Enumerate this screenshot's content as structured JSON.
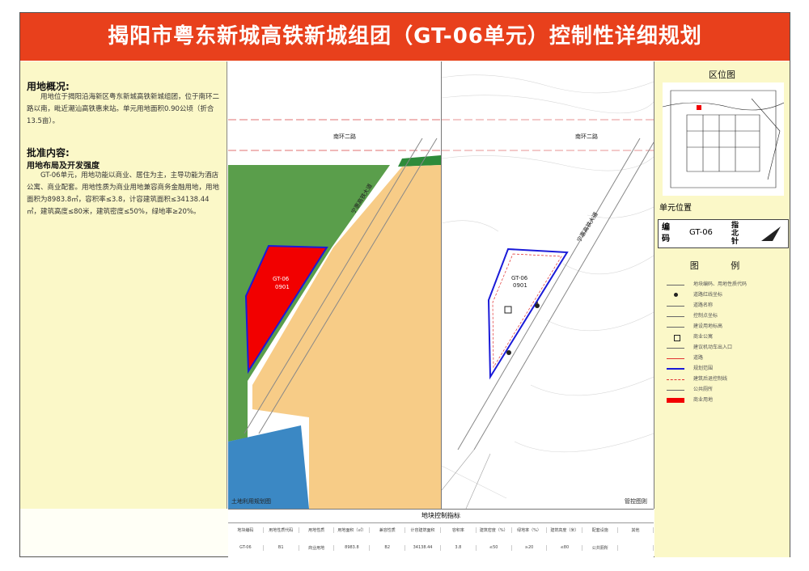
{
  "title": "揭阳市粤东新城高铁新城组团（GT-06单元）控制性详细规划",
  "overview": {
    "heading": "用地概况:",
    "text": "用地位于揭阳沿海新区粤东新城高铁新城组团，位于南环二路以南，毗近潮汕高铁惠来站。单元用地面积0.90公顷（折合13.5亩）。"
  },
  "approval": {
    "heading": "批准内容:",
    "subheading": "用地布局及开发强度",
    "text": "GT-06单元，用地功能以商业、居住为主，主导功能为酒店公寓、商业配套。用地性质为商业用地兼容商务金融用地，用地面积为8983.8㎡，容积率≤3.8，计容建筑面积≤34138.44㎡，建筑高度≤80米，建筑密度≤50%，绿地率≥20%。"
  },
  "left_map": {
    "road_top": "南环二路",
    "road_diag": "宁惠高铁大道",
    "plot_code": "GT-06",
    "plot_sub": "0901",
    "caption": "土地利用规划图"
  },
  "right_map": {
    "road_top": "南环二路",
    "road_diag": "宁惠高铁大道",
    "plot_code": "GT-06",
    "plot_sub": "0901",
    "caption": "管控图则"
  },
  "location": {
    "heading": "区位图",
    "unit_label": "单元位置"
  },
  "unit_box": {
    "code_label": "编码",
    "code_value": "GT-06",
    "north_label": "指北针"
  },
  "legend": {
    "heading": "图 例",
    "items": [
      {
        "label": "地块编码、用地性质代码",
        "symbol": "text"
      },
      {
        "label": "道路红线坐标",
        "symbol": "dot"
      },
      {
        "label": "道路名称",
        "symbol": "text"
      },
      {
        "label": "控制点坐标",
        "symbol": "arrow"
      },
      {
        "label": "建设用地标高",
        "symbol": "triangle"
      },
      {
        "label": "商业公寓",
        "symbol": "box"
      },
      {
        "label": "建议机动车出入口",
        "symbol": "triangle"
      },
      {
        "label": "道路",
        "symbol": "redline"
      },
      {
        "label": "规划范围",
        "symbol": "blueline"
      },
      {
        "label": "建筑后退控制线",
        "symbol": "reddash"
      },
      {
        "label": "公共厕所",
        "symbol": "icon"
      },
      {
        "label": "商业用地",
        "symbol": "redfill"
      }
    ]
  },
  "table": {
    "title": "地块控制指标",
    "headers": [
      "地块编码",
      "用地性质代码",
      "用地性质",
      "用地面积（㎡）",
      "兼容性质",
      "计容建筑面积",
      "容积率",
      "建筑密度（%）",
      "绿地率（%）",
      "建筑高度（米）",
      "配套设施",
      "其他"
    ],
    "values": [
      "GT-06",
      "B1",
      "商业用地",
      "8983.8",
      "B2",
      "34138.44",
      "3.8",
      "≤50",
      "≥20",
      "≤80",
      "公共厕所",
      ""
    ]
  },
  "colors": {
    "title_bg": "#e8401c",
    "panel_bg": "#fbf8c8",
    "commercial": "#f20000",
    "residential": "#f7cc87",
    "green": "#5a9e4b",
    "water_blue": "#3b88c4",
    "boundary": "#1a1ad8"
  }
}
